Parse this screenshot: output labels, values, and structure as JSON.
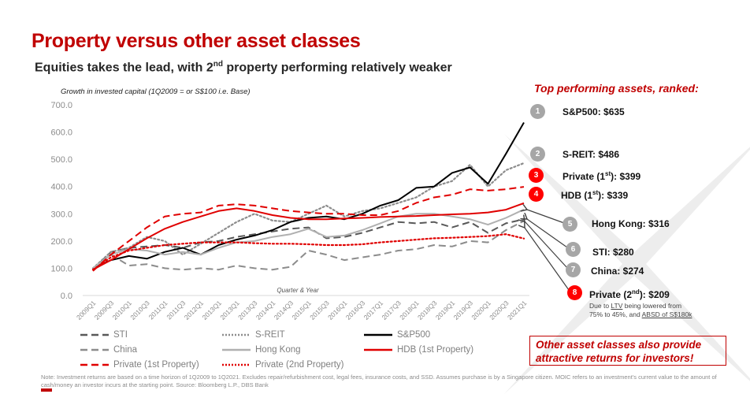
{
  "header": {
    "title": "Property versus other asset classes",
    "subtitle_pre": "Equities takes the lead, with 2",
    "subtitle_sup": "nd",
    "subtitle_post": " property performing relatively weaker"
  },
  "chart_data": {
    "type": "line",
    "title": "Growth in invested capital (1Q2009 = or S$100 i.e. Base)",
    "xlabel": "Quarter & Year",
    "ylabel": "",
    "ylim": [
      0,
      700
    ],
    "yticks": [
      "0.0",
      "100.0",
      "200.0",
      "300.0",
      "400.0",
      "500.0",
      "600.0",
      "700.0"
    ],
    "categories": [
      "2009Q1",
      "2009Q3",
      "2010Q1",
      "2010Q3",
      "2011Q1",
      "2011Q3",
      "2012Q1",
      "2013Q1",
      "2013Q1",
      "2013Q3",
      "2014Q1",
      "2014Q3",
      "2015Q1",
      "2015Q3",
      "2016Q1",
      "2016Q3",
      "2017Q1",
      "2017Q3",
      "2018Q1",
      "2018Q3",
      "2019Q1",
      "2019Q3",
      "2020Q1",
      "2020Q3",
      "2021Q1"
    ],
    "grid": false,
    "legend_position": "bottom",
    "series": [
      {
        "name": "STI",
        "color": "#595959",
        "style": "dash",
        "values": [
          95,
          160,
          175,
          180,
          185,
          175,
          195,
          200,
          215,
          225,
          235,
          245,
          250,
          210,
          215,
          230,
          250,
          270,
          265,
          270,
          250,
          270,
          230,
          265,
          280
        ]
      },
      {
        "name": "S-REIT",
        "color": "#8c8c8c",
        "style": "dot",
        "values": [
          100,
          160,
          175,
          215,
          200,
          150,
          190,
          230,
          270,
          300,
          275,
          270,
          300,
          330,
          290,
          310,
          320,
          340,
          360,
          400,
          420,
          480,
          400,
          460,
          486
        ]
      },
      {
        "name": "S&P500",
        "color": "#000000",
        "style": "solid",
        "values": [
          100,
          130,
          145,
          135,
          160,
          175,
          150,
          185,
          205,
          220,
          240,
          270,
          285,
          290,
          280,
          300,
          330,
          350,
          395,
          400,
          450,
          470,
          410,
          520,
          635
        ]
      },
      {
        "name": "China",
        "color": "#8c8c8c",
        "style": "dash",
        "values": [
          100,
          150,
          110,
          115,
          100,
          95,
          100,
          95,
          110,
          100,
          95,
          105,
          165,
          150,
          130,
          140,
          150,
          165,
          170,
          185,
          180,
          200,
          195,
          240,
          274
        ]
      },
      {
        "name": "Hong Kong",
        "color": "#b0b0b0",
        "style": "solid",
        "values": [
          100,
          150,
          170,
          165,
          150,
          160,
          150,
          175,
          195,
          200,
          215,
          225,
          245,
          215,
          220,
          240,
          265,
          290,
          300,
          300,
          290,
          280,
          260,
          285,
          316
        ]
      },
      {
        "name": "HDB (1st Property)",
        "color": "#e00000",
        "style": "solid",
        "values": [
          95,
          130,
          170,
          210,
          245,
          270,
          290,
          310,
          320,
          310,
          295,
          285,
          280,
          280,
          283,
          285,
          288,
          290,
          292,
          295,
          298,
          300,
          305,
          315,
          339
        ]
      },
      {
        "name": "Private (1st Property)",
        "color": "#e00000",
        "style": "dash",
        "values": [
          90,
          150,
          200,
          250,
          290,
          300,
          305,
          330,
          335,
          330,
          320,
          310,
          305,
          300,
          300,
          295,
          295,
          310,
          340,
          360,
          370,
          390,
          385,
          390,
          399
        ]
      },
      {
        "name": "Private (2nd Property)",
        "color": "#e00000",
        "style": "dot",
        "values": [
          95,
          140,
          165,
          175,
          185,
          190,
          195,
          195,
          195,
          192,
          190,
          190,
          188,
          185,
          185,
          188,
          195,
          200,
          205,
          210,
          212,
          215,
          218,
          225,
          209
        ]
      }
    ]
  },
  "ranking": {
    "title": "Top performing assets, ranked:",
    "items": [
      {
        "rank": "1",
        "label": "S&P500: $635",
        "color": "gray"
      },
      {
        "rank": "2",
        "label": "S-REIT: $486",
        "color": "gray"
      },
      {
        "rank": "3",
        "label_pre": "Private (1",
        "label_sup": "st",
        "label_post": "): $399",
        "color": "red"
      },
      {
        "rank": "4",
        "label_pre": "HDB (1",
        "label_sup": "st",
        "label_post": "): $339",
        "color": "red"
      },
      {
        "rank": "5",
        "label": "Hong Kong: $316",
        "color": "gray"
      },
      {
        "rank": "6",
        "label": "STI: $280",
        "color": "gray"
      },
      {
        "rank": "7",
        "label": "China: $274",
        "color": "gray"
      },
      {
        "rank": "8",
        "label_pre": "Private (2",
        "label_sup": "nd",
        "label_post": "): $209",
        "color": "red"
      }
    ],
    "note": {
      "t1": "Due to ",
      "ltv": "LTV",
      "t2": " being lowered  from",
      "t3": "75% to 45%, and ",
      "absd": "ABSD of S$180k"
    }
  },
  "callout": "Other asset classes also provide attractive returns for investors!",
  "footnote": "Note: Investment returns are based on a time horizon of 1Q2009 to 1Q2021. Excludes repair/refurbishment cost, legal fees, insurance costs, and SSD. Assumes purchase is by a Singapore citizen. MOIC refers to an investment's current value to the amount of cash/money an investor incurs at the starting point. Source: Bloomberg L.P., DBS Bank"
}
